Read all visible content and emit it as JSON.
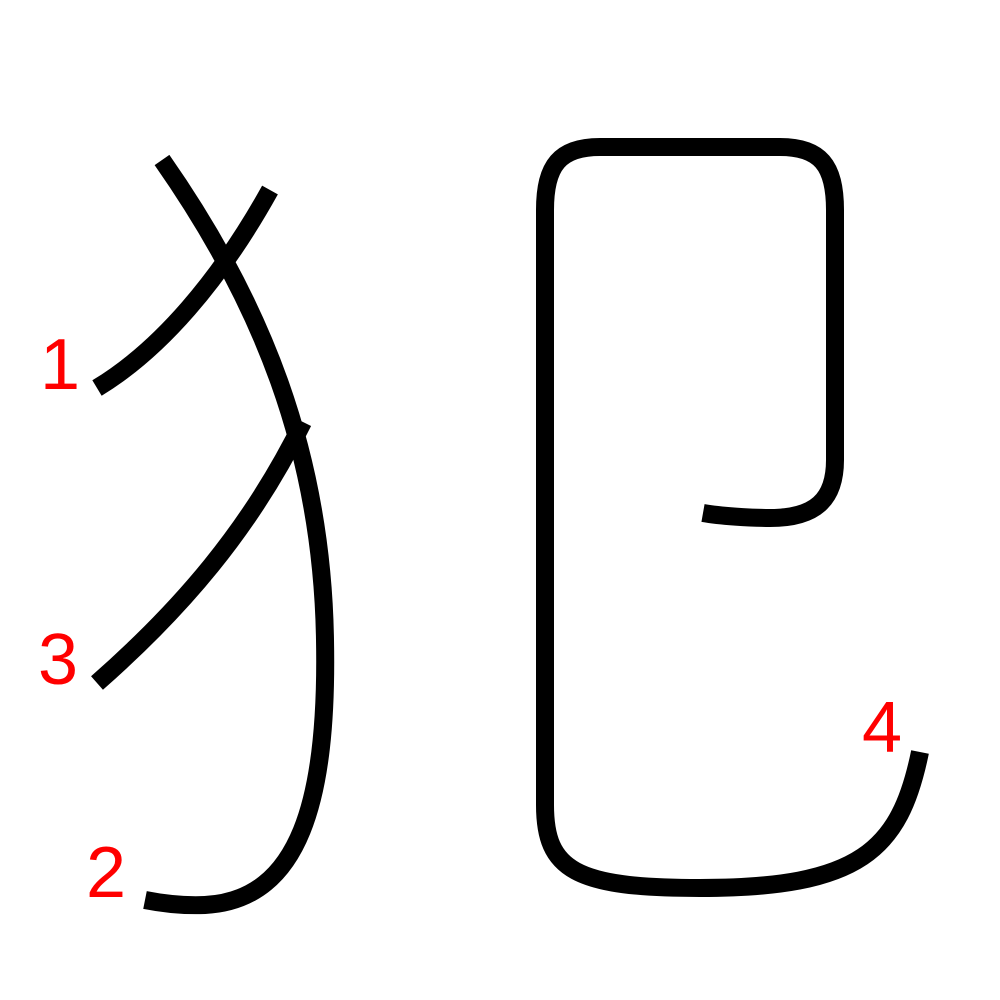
{
  "character": {
    "stroke_color": "#000000",
    "label_color": "#ff0000",
    "stroke_order_labels": [
      "1",
      "2",
      "3",
      "4"
    ]
  }
}
